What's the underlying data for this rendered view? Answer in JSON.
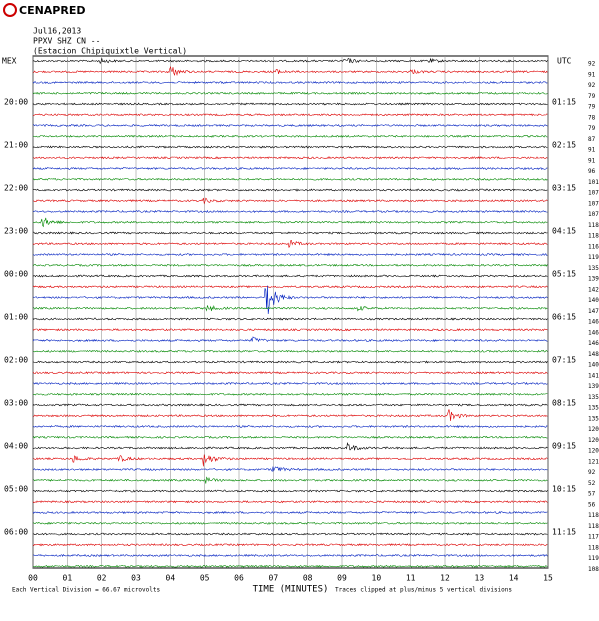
{
  "header": {
    "logo": "CENAPRED",
    "date": "Jul16,2013",
    "station": "PPXV SHZ CN --",
    "station_name": "(Estacion Chipiquixtle Vertical)"
  },
  "left_axis": {
    "title": "MEX",
    "labels": [
      "20:00",
      "21:00",
      "22:00",
      "23:00",
      "00:00",
      "01:00",
      "02:00",
      "03:00",
      "04:00",
      "05:00",
      "06:00"
    ]
  },
  "right_axis": {
    "title": "UTC",
    "labels": [
      "01:15",
      "02:15",
      "03:15",
      "04:15",
      "05:15",
      "06:15",
      "07:15",
      "08:15",
      "09:15",
      "10:15",
      "11:15"
    ]
  },
  "row_numbers": [
    92,
    91,
    92,
    79,
    79,
    78,
    79,
    87,
    91,
    91,
    96,
    101,
    107,
    107,
    107,
    118,
    118,
    116,
    119,
    135,
    139,
    142,
    140,
    147,
    146,
    146,
    146,
    148,
    140,
    141,
    139,
    135,
    135,
    135,
    120,
    120,
    120,
    121,
    92,
    52,
    57,
    56,
    118,
    118,
    117,
    118,
    119,
    108
  ],
  "x_axis": {
    "title": "TIME (MINUTES)",
    "labels": [
      "00",
      "01",
      "02",
      "03",
      "04",
      "05",
      "06",
      "07",
      "08",
      "09",
      "10",
      "11",
      "12",
      "13",
      "14",
      "15"
    ]
  },
  "footer": {
    "scale": "Each Vertical Division = 66.67 microvolts",
    "clip": "Traces clipped at plus/minus 5 vertical divisions"
  }
}
